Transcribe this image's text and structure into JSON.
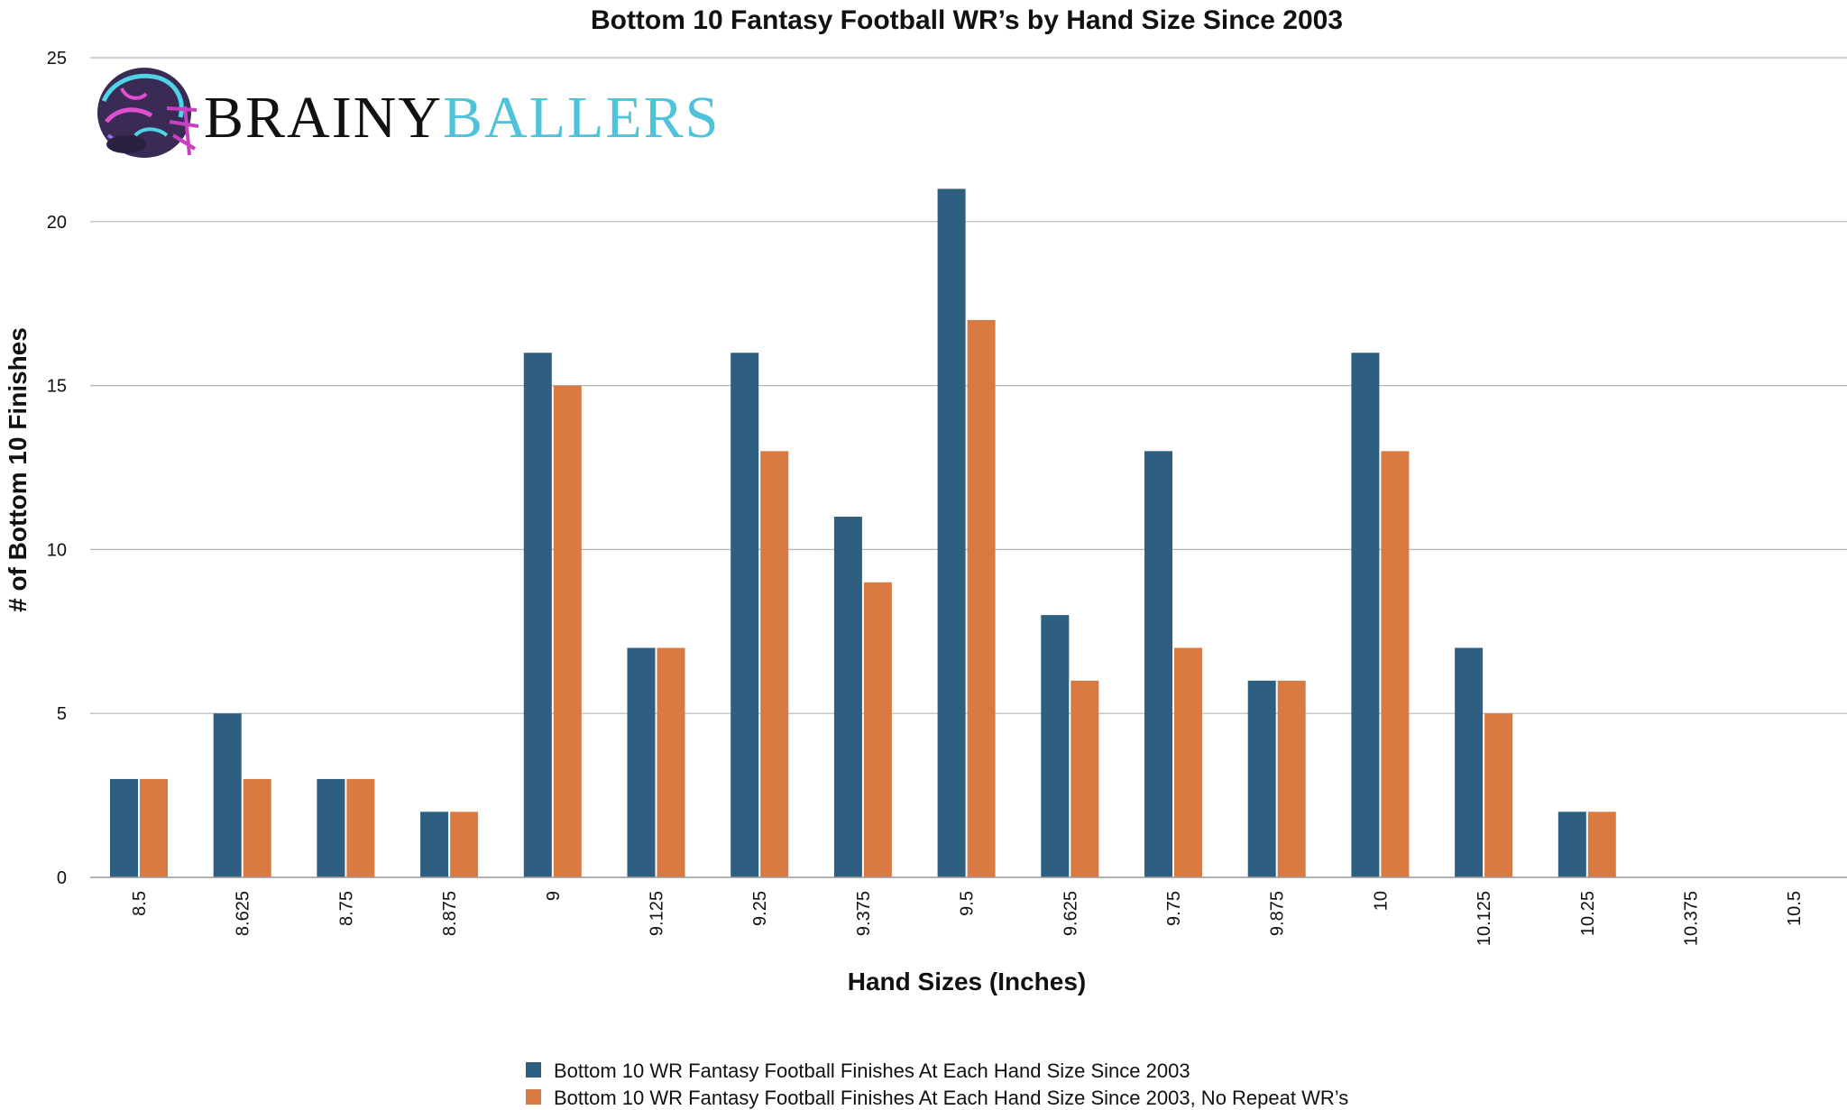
{
  "chart_data": {
    "type": "bar",
    "title": "Bottom 10 Fantasy Football WR’s by Hand Size Since 2003",
    "xlabel": "Hand Sizes (Inches)",
    "ylabel": "# of Bottom 10 Finishes",
    "ylim": [
      0,
      25
    ],
    "yticks": [
      "0",
      "5",
      "10",
      "15",
      "20",
      "25"
    ],
    "grid": true,
    "legend_position": "bottom",
    "categories": [
      "8.5",
      "8.625",
      "8.75",
      "8.875",
      "9",
      "9.125",
      "9.25",
      "9.375",
      "9.5",
      "9.625",
      "9.75",
      "9.875",
      "10",
      "10.125",
      "10.25",
      "10.375",
      "10.5"
    ],
    "series": [
      {
        "name": "Bottom 10 WR Fantasy Football Finishes At Each Hand Size Since 2003",
        "color": "#2e5f80",
        "values": [
          3,
          5,
          3,
          2,
          16,
          7,
          16,
          11,
          21,
          8,
          13,
          6,
          16,
          7,
          2,
          0,
          0
        ]
      },
      {
        "name": "Bottom 10 WR Fantasy Football Finishes At Each Hand Size Since 2003, No Repeat WR’s",
        "color": "#d97a43",
        "values": [
          3,
          3,
          3,
          2,
          15,
          7,
          13,
          9,
          17,
          6,
          7,
          6,
          13,
          5,
          2,
          0,
          0
        ]
      }
    ]
  },
  "logo": {
    "icon": "football-helmet-icon",
    "word1": "BRAINY",
    "word2": "BALLERS",
    "color1": "#111111",
    "color2": "#4fc3d9"
  }
}
